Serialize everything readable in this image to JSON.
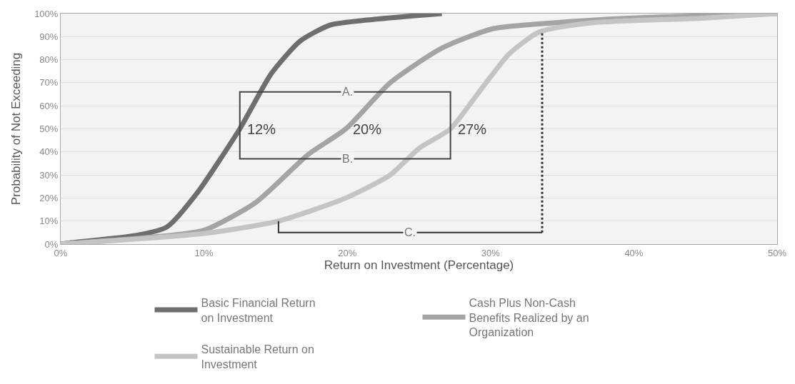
{
  "chart_data": {
    "type": "line",
    "xlabel": "Return on Investment (Percentage)",
    "ylabel": "Probability of Not Exceeding",
    "xlim": [
      0,
      50
    ],
    "ylim": [
      0,
      100
    ],
    "xticks": [
      {
        "value": 0,
        "label": "0%"
      },
      {
        "value": 10,
        "label": "10%"
      },
      {
        "value": 20,
        "label": "20%"
      },
      {
        "value": 30,
        "label": "30%"
      },
      {
        "value": 40,
        "label": "40%"
      },
      {
        "value": 50,
        "label": "50%"
      }
    ],
    "yticks": [
      {
        "value": 0,
        "label": "0%"
      },
      {
        "value": 10,
        "label": "10%"
      },
      {
        "value": 20,
        "label": "20%"
      },
      {
        "value": 30,
        "label": "30%"
      },
      {
        "value": 40,
        "label": "40%"
      },
      {
        "value": 50,
        "label": "50%"
      },
      {
        "value": 60,
        "label": "60%"
      },
      {
        "value": 70,
        "label": "70%"
      },
      {
        "value": 80,
        "label": "80%"
      },
      {
        "value": 90,
        "label": "90%"
      },
      {
        "value": 100,
        "label": "100%"
      }
    ],
    "grid": "y",
    "legend": "bottom",
    "marker": "none",
    "line_style": "solid",
    "series": [
      {
        "name": "Basic Financial Return on Investment",
        "color": "#6e6e6e",
        "x": [
          0,
          0.6,
          5.3,
          7.4,
          9.5,
          12.5,
          14.7,
          16.7,
          18.8,
          21.9,
          26.6
        ],
        "values": [
          0,
          0.5,
          3.8,
          7.4,
          22,
          50,
          74,
          88,
          95,
          97.5,
          100
        ]
      },
      {
        "name": "Cash Plus Non-Cash Benefits Realized by an Organization",
        "color": "#a4a4a4",
        "x": [
          0,
          6.3,
          10,
          13.6,
          17.3,
          19.9,
          23,
          26.6,
          30.2,
          34.4,
          39.6,
          50
        ],
        "values": [
          0,
          3,
          6,
          18,
          39,
          50,
          70,
          85,
          93.5,
          96,
          98,
          100
        ]
      },
      {
        "name": "Sustainable Return on Investment",
        "color": "#c4c4c4",
        "x": [
          0,
          10,
          15.2,
          19.9,
          23,
          25,
          27.2,
          29.2,
          31.3,
          33.4,
          37,
          44.8,
          50
        ],
        "values": [
          0,
          4.6,
          10,
          20,
          30,
          41.5,
          50,
          66,
          82.5,
          92,
          96,
          98,
          100
        ]
      }
    ],
    "ref_lines": [
      {
        "axis": "x",
        "value": 33.6,
        "line_style": "dotted",
        "color": "#333333"
      }
    ],
    "annotations": [
      {
        "text": "12%",
        "x": 12.5,
        "y": 50
      },
      {
        "text": "20%",
        "x": 19.9,
        "y": 50
      },
      {
        "text": "27%",
        "x": 27.2,
        "y": 50
      },
      {
        "text": "A.",
        "x": 20,
        "y": 66
      },
      {
        "text": "B.",
        "x": 20,
        "y": 37
      },
      {
        "text": "C.",
        "x": 24.4,
        "y": 5
      }
    ]
  }
}
